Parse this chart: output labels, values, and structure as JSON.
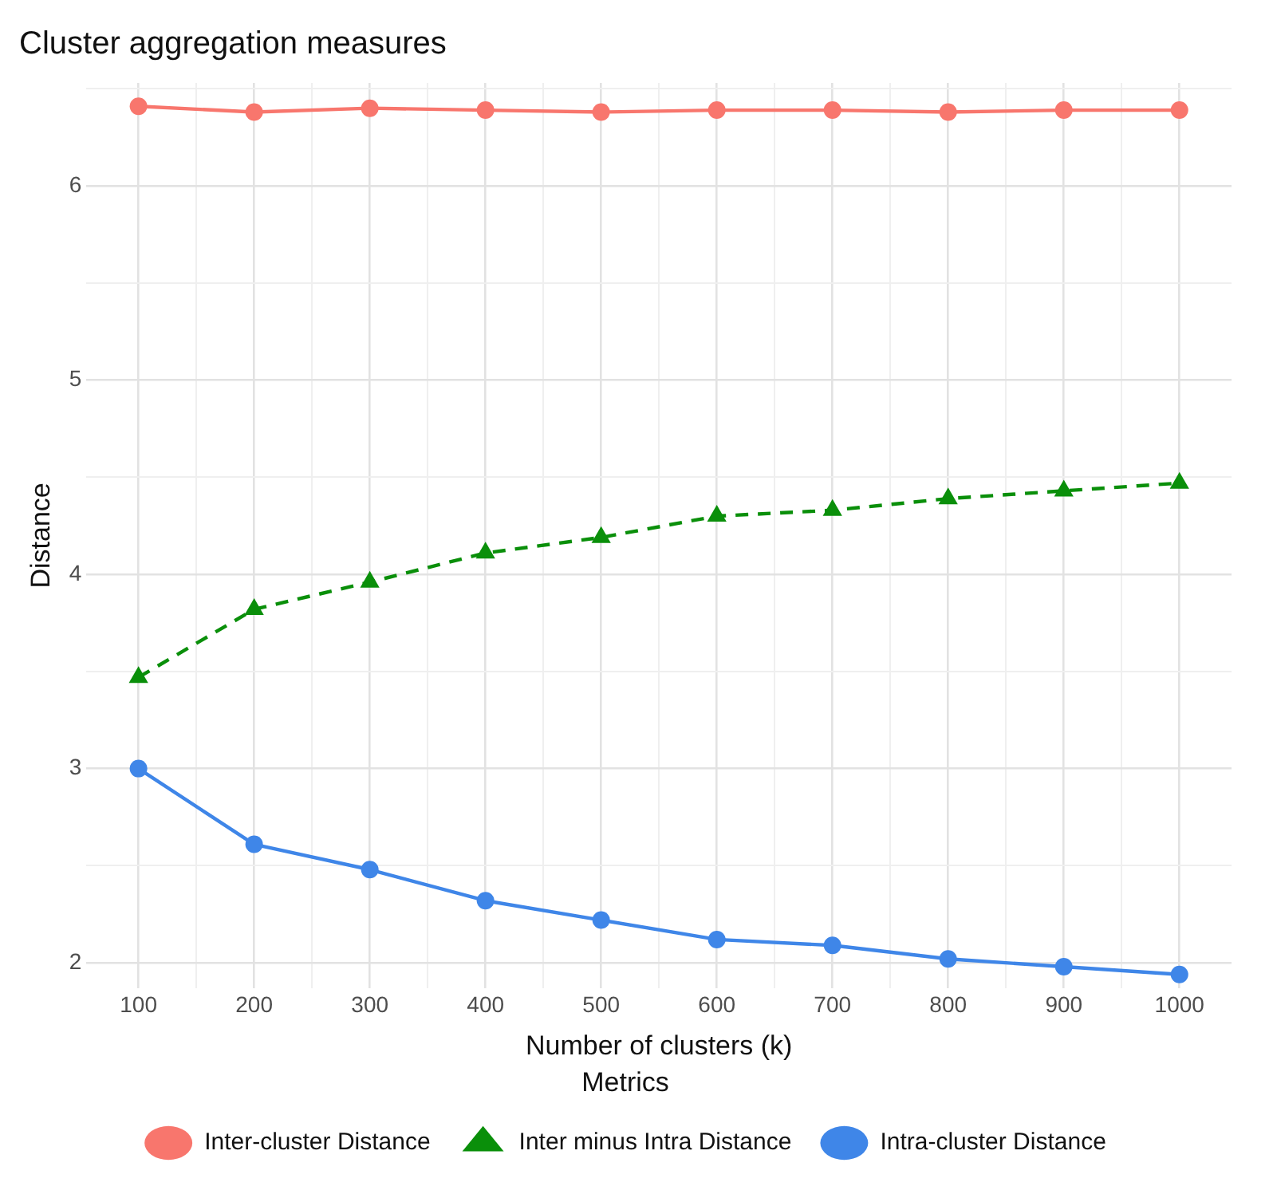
{
  "chart_data": {
    "type": "line",
    "title": "Cluster aggregation measures",
    "xlabel": "Number of clusters (k)",
    "ylabel": "Distance",
    "legend_title": "Metrics",
    "legend": "bottom",
    "grid": true,
    "x": [
      100,
      200,
      300,
      400,
      500,
      600,
      700,
      800,
      900,
      1000
    ],
    "xlim": [
      55,
      1045
    ],
    "xticks": [
      100,
      {
        "value": 150,
        "label": null
      },
      200,
      {
        "value": 250,
        "label": null
      },
      300,
      {
        "value": 350,
        "label": null
      },
      400,
      {
        "value": 450,
        "label": null
      },
      500,
      {
        "value": 550,
        "label": null
      },
      600,
      {
        "value": 650,
        "label": null
      },
      700,
      {
        "value": 750,
        "label": null
      },
      800,
      {
        "value": 850,
        "label": null
      },
      900,
      {
        "value": 950,
        "label": null
      },
      1000
    ],
    "ylim": [
      1.87,
      6.53
    ],
    "yticks": [
      2,
      {
        "value": 2.5,
        "label": null
      },
      3,
      {
        "value": 3.5,
        "label": null
      },
      4,
      {
        "value": 4.5,
        "label": null
      },
      5,
      {
        "value": 5.5,
        "label": null
      },
      6,
      {
        "value": 6.5,
        "label": null
      }
    ],
    "series": [
      {
        "name": "Inter-cluster Distance",
        "color": "#f8766d",
        "marker": "circle",
        "line_style": "solid",
        "values": [
          6.41,
          6.38,
          6.4,
          6.39,
          6.38,
          6.39,
          6.39,
          6.38,
          6.39,
          6.39
        ]
      },
      {
        "name": "Inter minus Intra Distance",
        "color": "#0a8f0a",
        "marker": "triangle",
        "line_style": "dashed",
        "values": [
          3.47,
          3.82,
          3.96,
          4.11,
          4.19,
          4.3,
          4.33,
          4.39,
          4.43,
          4.47
        ]
      },
      {
        "name": "Intra-cluster Distance",
        "color": "#3f86e8",
        "marker": "circle",
        "line_style": "solid",
        "values": [
          3.0,
          2.61,
          2.48,
          2.32,
          2.22,
          2.12,
          2.09,
          2.02,
          1.98,
          1.94
        ]
      }
    ]
  }
}
